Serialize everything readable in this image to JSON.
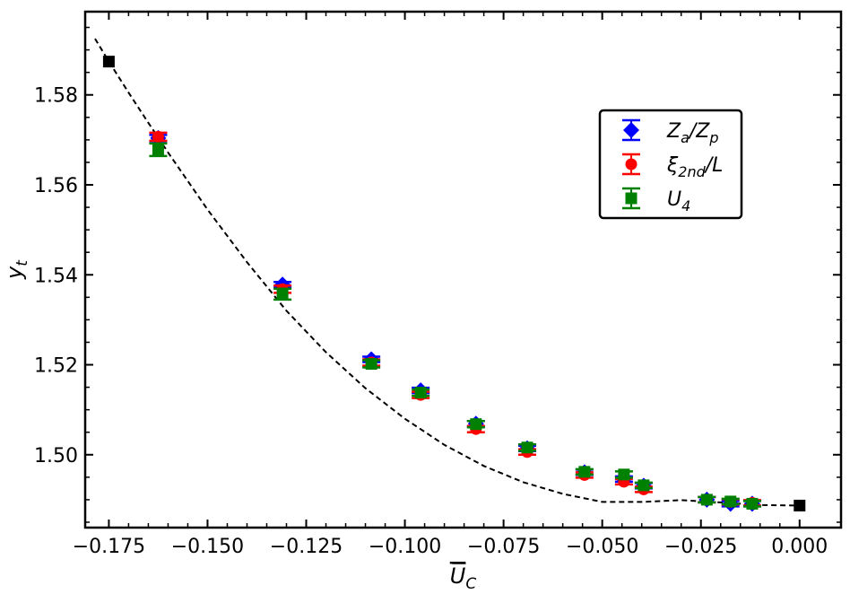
{
  "chart_data": {
    "type": "scatter",
    "xlabel": "U̅_C",
    "ylabel": "y_t",
    "xlim": [
      -0.181,
      0.0105
    ],
    "ylim": [
      1.4838,
      1.5985
    ],
    "xticks": [
      -0.175,
      -0.15,
      -0.125,
      -0.1,
      -0.075,
      -0.05,
      -0.025,
      0.0
    ],
    "xtick_labels": [
      "−0.175",
      "−0.150",
      "−0.125",
      "−0.100",
      "−0.075",
      "−0.050",
      "−0.025",
      "0.000"
    ],
    "yticks": [
      1.5,
      1.52,
      1.54,
      1.56,
      1.58
    ],
    "ytick_labels": [
      "1.50",
      "1.52",
      "1.54",
      "1.56",
      "1.58"
    ],
    "legend_position": "upper-right",
    "grid": false,
    "series": [
      {
        "name": "Z_a/Z_p",
        "marker": "diamond",
        "color": "#0000ff",
        "x": [
          -0.1625,
          -0.131,
          -0.1085,
          -0.096,
          -0.082,
          -0.069,
          -0.0545,
          -0.0445,
          -0.0395,
          -0.0235,
          -0.0175,
          -0.012
        ],
        "y": [
          1.5704,
          1.5378,
          1.5212,
          1.5143,
          1.5069,
          1.5014,
          1.4961,
          1.4946,
          1.4931,
          1.49,
          1.4891,
          1.4891
        ],
        "err": [
          0.0007,
          0.0006,
          0.0005,
          0.0005,
          0.0005,
          0.0005,
          0.0004,
          0.0004,
          0.0004,
          0.0004,
          0.0004,
          0.0004
        ]
      },
      {
        "name": "ξ_2nd/L",
        "marker": "circle",
        "color": "#ff0000",
        "x": [
          -0.1625,
          -0.131,
          -0.1085,
          -0.096,
          -0.082,
          -0.069,
          -0.0545,
          -0.0445,
          -0.0395,
          -0.0235,
          -0.0175,
          -0.012
        ],
        "y": [
          1.5707,
          1.5368,
          1.5205,
          1.5133,
          1.5057,
          1.5006,
          1.4955,
          1.494,
          1.4923,
          1.49,
          1.4895,
          1.4893
        ],
        "err": [
          0.0009,
          0.0008,
          0.0007,
          0.0007,
          0.0007,
          0.0006,
          0.0006,
          0.0006,
          0.0006,
          0.0006,
          0.0005,
          0.0005
        ]
      },
      {
        "name": "U_4",
        "marker": "square",
        "color": "#008000",
        "x": [
          -0.1625,
          -0.131,
          -0.1085,
          -0.096,
          -0.082,
          -0.069,
          -0.0545,
          -0.0445,
          -0.0395,
          -0.0235,
          -0.0175,
          -0.012
        ],
        "y": [
          1.5678,
          1.5357,
          1.5202,
          1.5138,
          1.5068,
          1.5016,
          1.4962,
          1.4956,
          1.4932,
          1.49,
          1.4896,
          1.4891
        ],
        "err": [
          0.0014,
          0.0012,
          0.0008,
          0.0007,
          0.0007,
          0.0007,
          0.0006,
          0.0007,
          0.0006,
          0.0005,
          0.0005,
          0.0005
        ]
      },
      {
        "name": "",
        "marker": "square",
        "color": "#000000",
        "x": [
          -0.175,
          0.0
        ],
        "y": [
          1.5874,
          1.4887
        ]
      }
    ],
    "fit_curve": {
      "style": "dashed",
      "color": "#000000",
      "x": [
        -0.1785,
        -0.175,
        -0.17,
        -0.165,
        -0.16,
        -0.15,
        -0.14,
        -0.13,
        -0.12,
        -0.11,
        -0.1,
        -0.09,
        -0.08,
        -0.07,
        -0.06,
        -0.05,
        -0.04,
        -0.03,
        -0.02,
        -0.01,
        0.0
      ],
      "y": [
        1.5925,
        1.5874,
        1.5805,
        1.5738,
        1.5672,
        1.5545,
        1.5428,
        1.532,
        1.5228,
        1.5148,
        1.508,
        1.5022,
        1.4975,
        1.4939,
        1.4913,
        1.4895,
        1.4895,
        1.4899,
        1.4894,
        1.4888,
        1.4887
      ]
    }
  }
}
